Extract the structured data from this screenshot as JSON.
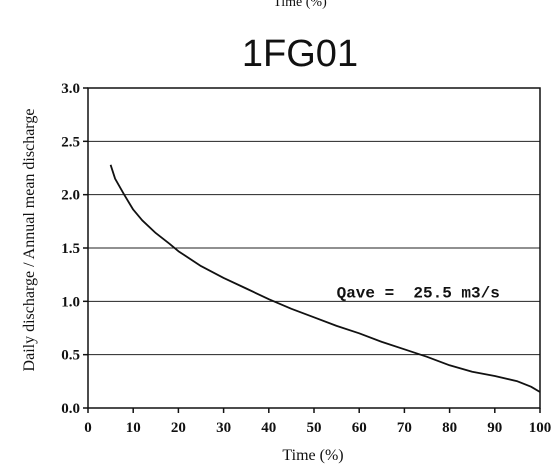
{
  "top_caption": "Time (%)",
  "chart_data": {
    "type": "line",
    "title": "1FG01",
    "xlabel": "Time (%)",
    "ylabel": "Daily discharge / Annual mean discharge",
    "xlim": [
      0,
      100
    ],
    "ylim": [
      0,
      3.0
    ],
    "x_ticks": [
      "0",
      "10",
      "20",
      "30",
      "40",
      "50",
      "60",
      "70",
      "80",
      "90",
      "100"
    ],
    "y_ticks": [
      "0.0",
      "0.5",
      "1.0",
      "1.5",
      "2.0",
      "2.5",
      "3.0"
    ],
    "grid": "horizontal",
    "annotation": "Qave =  25.5 m3/s",
    "annotation_at": [
      55,
      1.0
    ],
    "series": [
      {
        "x": [
          5,
          6,
          8,
          10,
          12,
          15,
          18,
          20,
          25,
          30,
          35,
          40,
          45,
          50,
          55,
          60,
          65,
          70,
          75,
          80,
          85,
          90,
          95,
          98,
          100
        ],
        "y": [
          2.28,
          2.15,
          2.0,
          1.86,
          1.76,
          1.64,
          1.54,
          1.47,
          1.33,
          1.22,
          1.12,
          1.02,
          0.93,
          0.85,
          0.77,
          0.7,
          0.62,
          0.55,
          0.48,
          0.4,
          0.34,
          0.3,
          0.25,
          0.2,
          0.15
        ]
      }
    ]
  }
}
